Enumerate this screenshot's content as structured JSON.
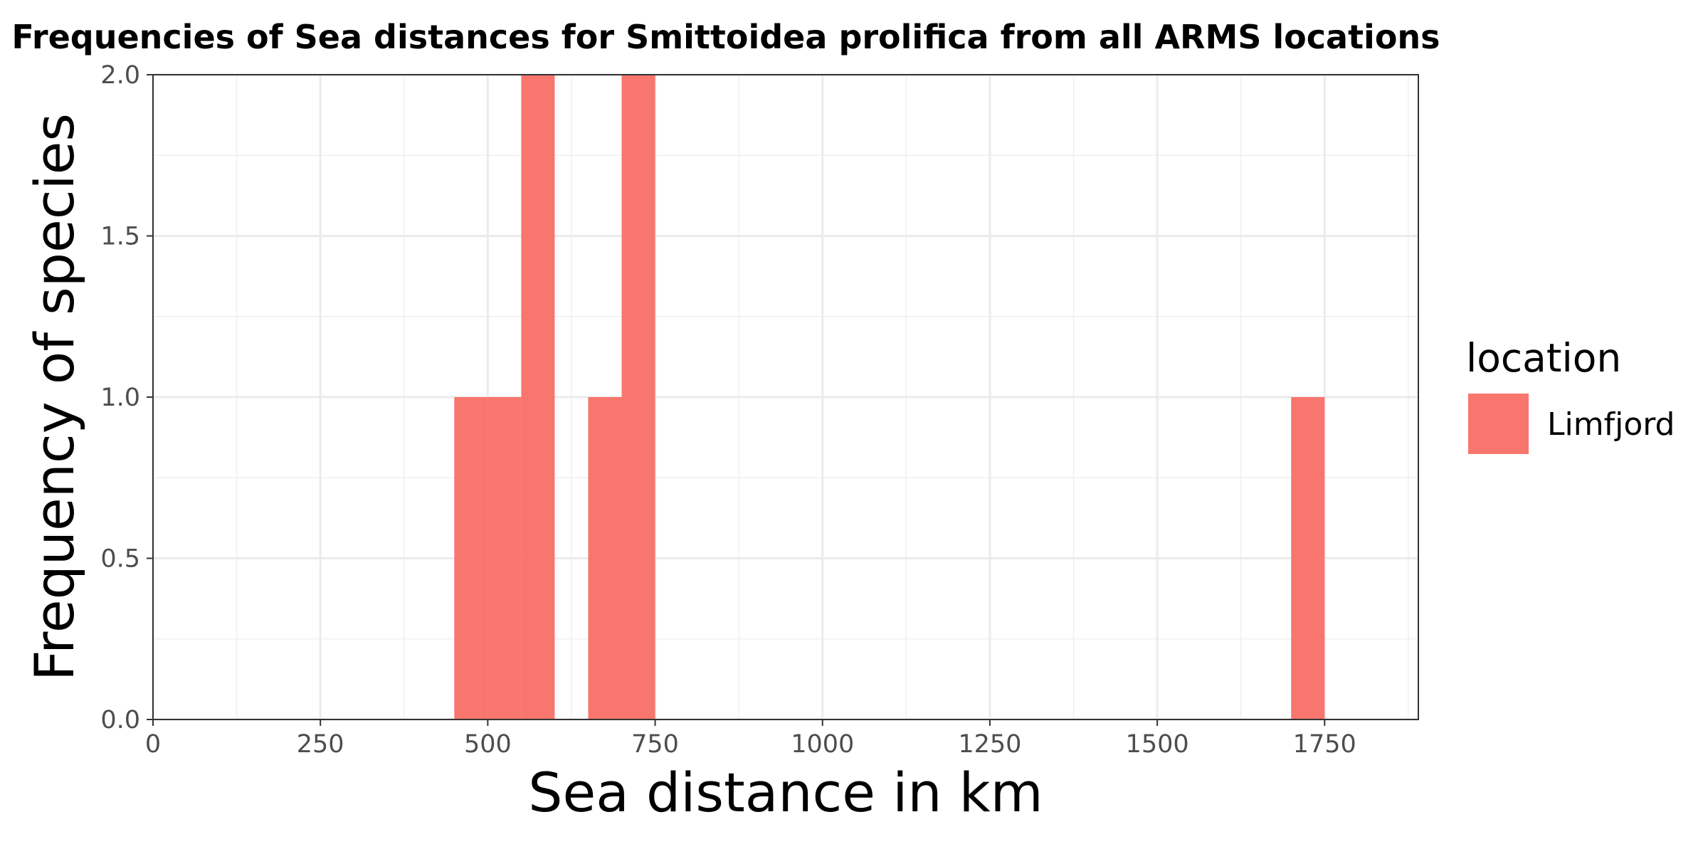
{
  "chart_data": {
    "type": "bar",
    "title": "Frequencies of Sea distances for Smittoidea prolifica from all ARMS locations",
    "xlabel": "Sea distance in km",
    "ylabel": "Frequency of species",
    "xlim": [
      0,
      1890
    ],
    "ylim": [
      0,
      2
    ],
    "x_ticks": [
      0,
      250,
      500,
      750,
      1000,
      1250,
      1500,
      1750
    ],
    "x_tick_labels": [
      "0",
      "250",
      "500",
      "750",
      "1000",
      "1250",
      "1500",
      "1750"
    ],
    "y_ticks": [
      0,
      0.5,
      1,
      1.5,
      2
    ],
    "y_tick_labels": [
      "0.0",
      "0.5",
      "1.0",
      "1.5",
      "2.0"
    ],
    "grid": true,
    "legend": {
      "title": "location",
      "position": "right"
    },
    "series": [
      {
        "name": "Limfjord",
        "color": "#F8766D",
        "bins": [
          {
            "x0": 450,
            "x1": 500,
            "value": 1
          },
          {
            "x0": 500,
            "x1": 550,
            "value": 1
          },
          {
            "x0": 550,
            "x1": 600,
            "value": 2
          },
          {
            "x0": 650,
            "x1": 700,
            "value": 1
          },
          {
            "x0": 700,
            "x1": 750,
            "value": 2
          },
          {
            "x0": 1700,
            "x1": 1750,
            "value": 1
          }
        ]
      }
    ]
  }
}
